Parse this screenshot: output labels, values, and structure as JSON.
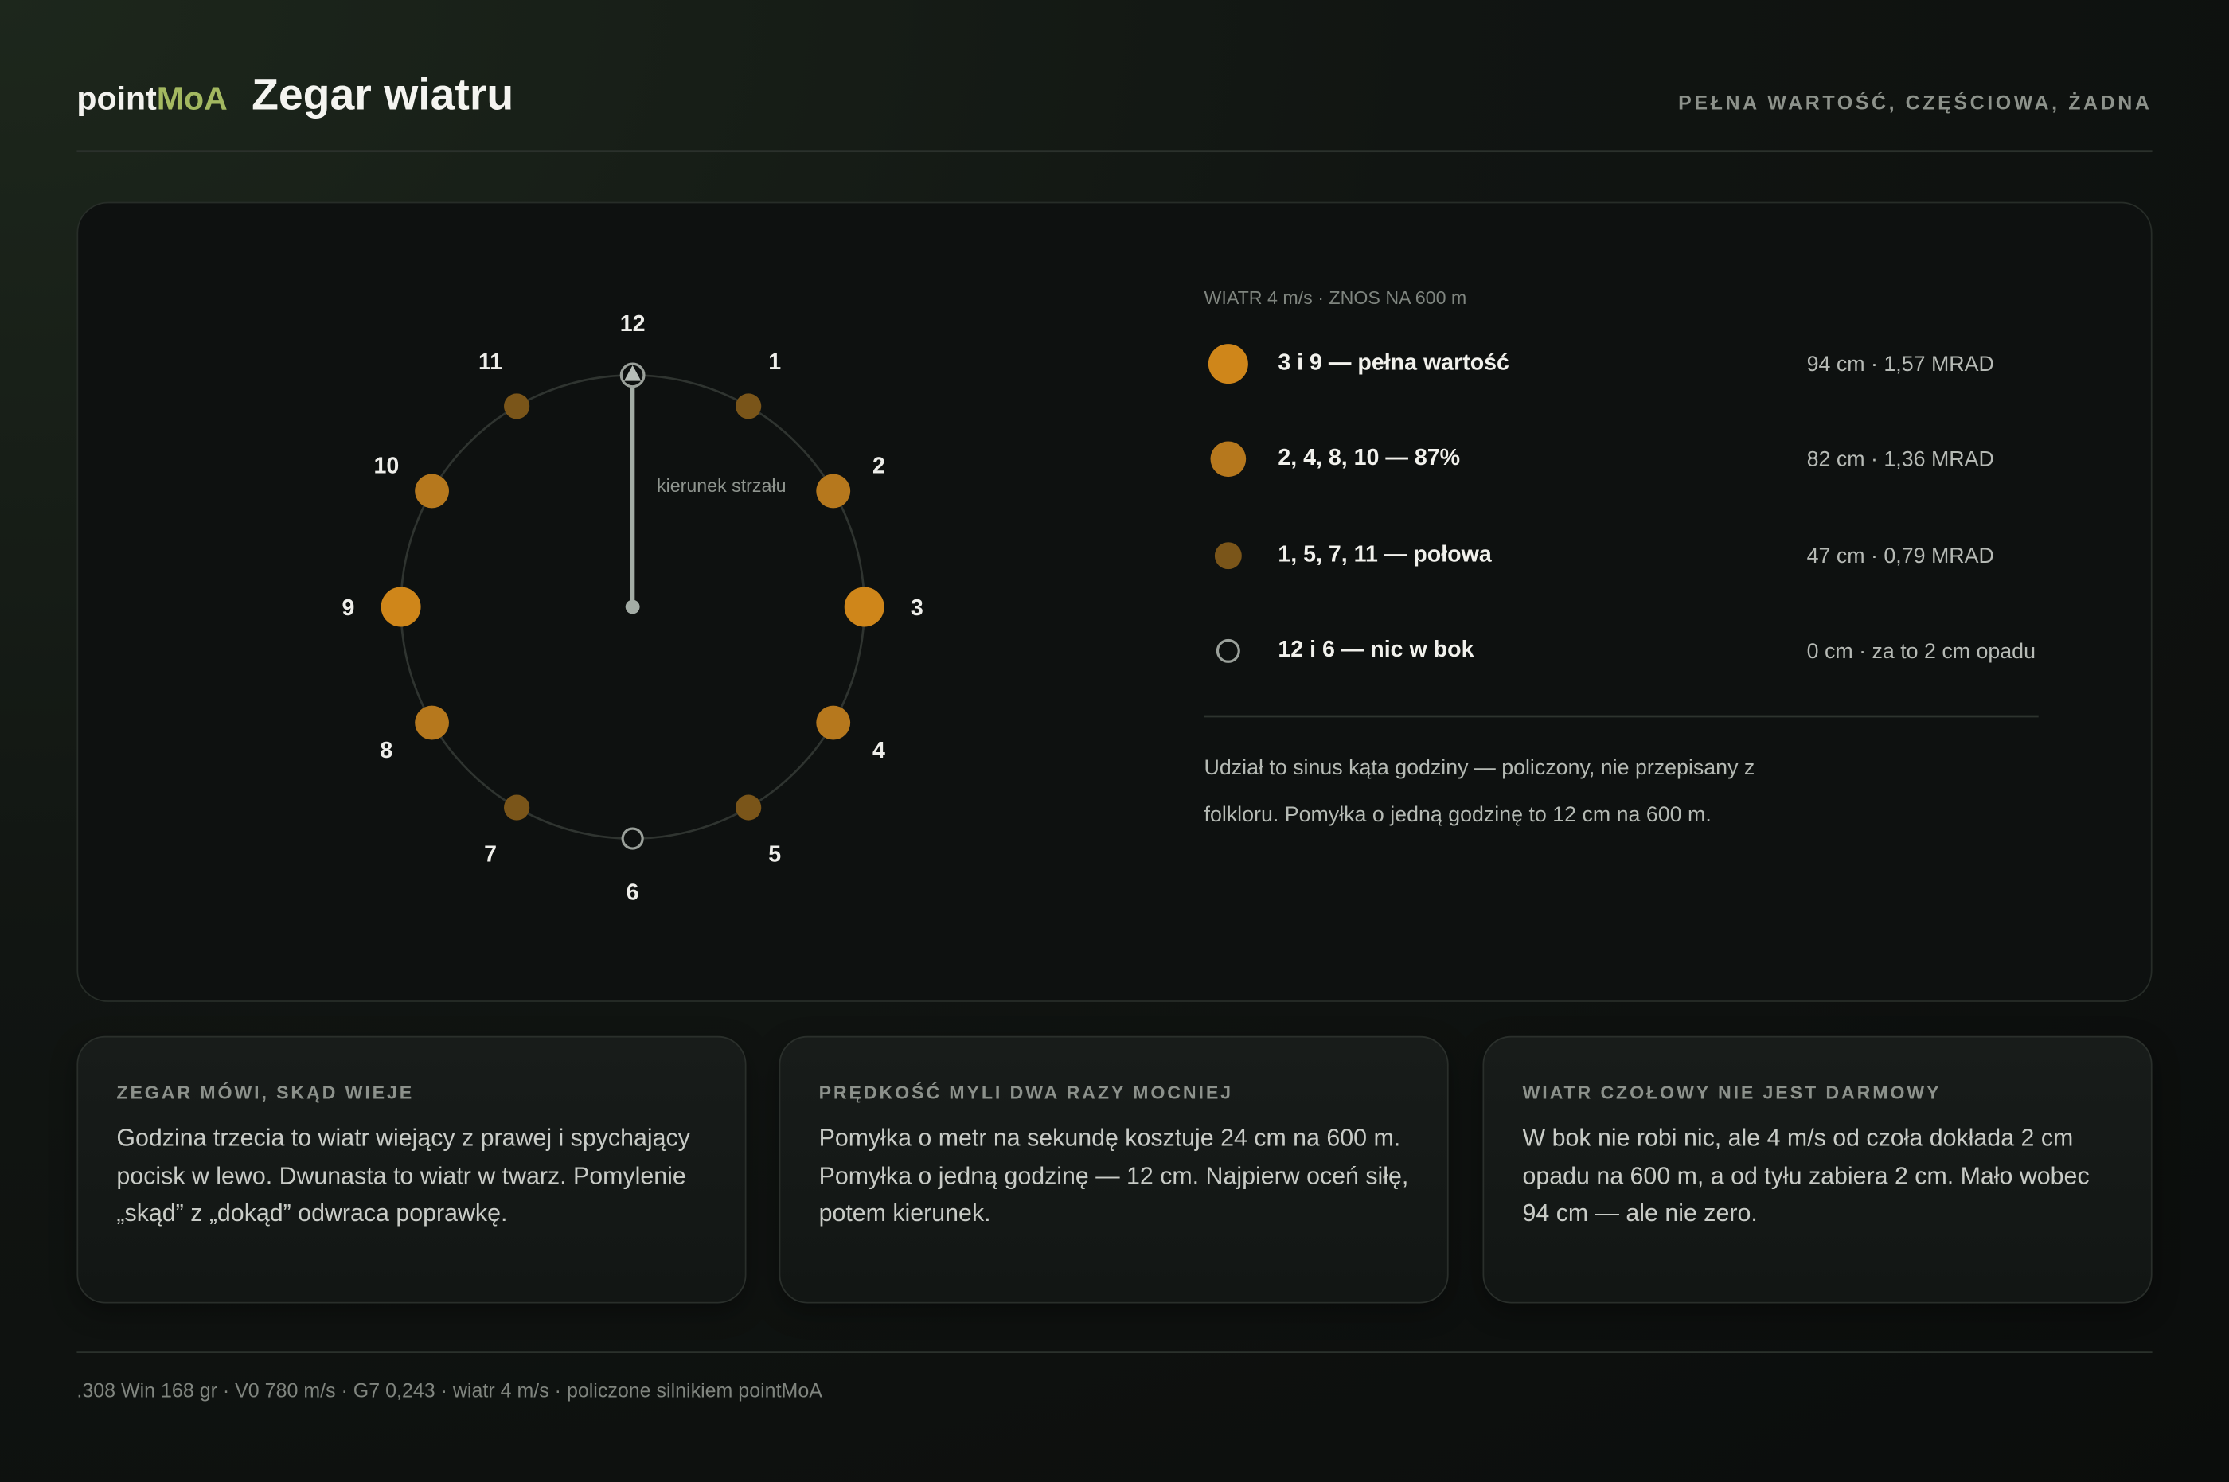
{
  "header": {
    "brand_a": "point",
    "brand_b": "MoA",
    "title": "Zegar wiatru",
    "tagline": "PEŁNA WARTOŚĆ, CZĘŚCIOWA, ŻADNA"
  },
  "clock": {
    "hours": [
      "12",
      "1",
      "2",
      "3",
      "4",
      "5",
      "6",
      "7",
      "8",
      "9",
      "10",
      "11"
    ],
    "direction_label": "kierunek strzału"
  },
  "legend": {
    "caption": "WIATR 4 m/s · ZNOS NA 600 m",
    "items": [
      {
        "label": "3 i 9 — pełna wartość",
        "value": "94 cm · 1,57 MRAD"
      },
      {
        "label": "2, 4, 8, 10 — 87%",
        "value": "82 cm · 1,36 MRAD"
      },
      {
        "label": "1, 5, 7, 11 — połowa",
        "value": "47 cm · 0,79 MRAD"
      },
      {
        "label": "12 i 6 — nic w bok",
        "value": "0 cm · za to 2 cm opadu"
      }
    ],
    "note": "Udział to sinus kąta godziny — policzony, nie przepisany z folkloru. Pomyłka o jedną godzinę to 12 cm na 600 m."
  },
  "cards": [
    {
      "title": "ZEGAR MÓWI, SKĄD WIEJE",
      "body": "Godzina trzecia to wiatr wiejący z prawej i spychający pocisk w lewo. Dwunasta to wiatr w twarz. Pomylenie „skąd” z „dokąd” odwraca poprawkę."
    },
    {
      "title": "PRĘDKOŚĆ MYLI DWA RAZY MOCNIEJ",
      "body": "Pomyłka o metr na sekundę kosztuje 24 cm na 600 m. Pomyłka o jedną godzinę — 12 cm. Najpierw oceń siłę, potem kierunek."
    },
    {
      "title": "WIATR CZOŁOWY NIE JEST DARMOWY",
      "body": "W bok nie robi nic, ale 4 m/s od czoła dokłada 2 cm opadu na 600 m, a od tyłu zabiera 2 cm. Mało wobec 94 cm — ale nie zero."
    }
  ],
  "footer": ".308 Win 168 gr · V0 780 m/s · G7 0,243 · wiatr 4 m/s · policzone silnikiem pointMoA"
}
